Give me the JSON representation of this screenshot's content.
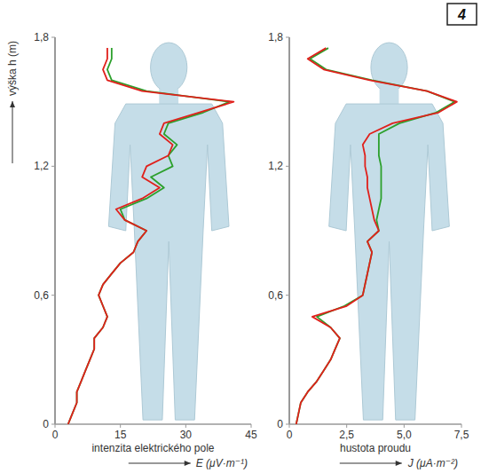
{
  "chart_data": [
    {
      "type": "line",
      "y_label": "výška h (m)",
      "x_label": "intenzita elektrického pole",
      "x_unit": "E (μV·m⁻¹)",
      "xlim": [
        0,
        45
      ],
      "xticks": [
        0,
        15,
        30,
        45
      ],
      "ylim": [
        0,
        1.8
      ],
      "yticks": [
        0,
        {
          "value": 0.6,
          "label": "0,6"
        },
        {
          "value": 1.2,
          "label": "1,2"
        },
        {
          "value": 1.8,
          "label": "1,8"
        }
      ],
      "series": [
        {
          "color": "#2ca02c",
          "y": [
            0,
            0.05,
            0.1,
            0.15,
            0.2,
            0.25,
            0.3,
            0.35,
            0.4,
            0.45,
            0.5,
            0.55,
            0.6,
            0.65,
            0.7,
            0.75,
            0.8,
            0.85,
            0.9,
            0.95,
            1.0,
            1.05,
            1.1,
            1.15,
            1.2,
            1.25,
            1.3,
            1.35,
            1.4,
            1.45,
            1.5,
            1.55,
            1.6,
            1.65,
            1.7,
            1.75
          ],
          "x": [
            3,
            4,
            5,
            5,
            6,
            7,
            8,
            9,
            9,
            11,
            12,
            11,
            10,
            11,
            13,
            15,
            18,
            19,
            21,
            16,
            15,
            21,
            25,
            22,
            27,
            26,
            28,
            25,
            26,
            34,
            40,
            21,
            13,
            12,
            13,
            13
          ]
        },
        {
          "color": "#e0201b",
          "y": [
            0,
            0.05,
            0.1,
            0.15,
            0.2,
            0.25,
            0.3,
            0.35,
            0.4,
            0.45,
            0.5,
            0.55,
            0.6,
            0.65,
            0.7,
            0.75,
            0.8,
            0.85,
            0.9,
            0.95,
            1.0,
            1.05,
            1.1,
            1.15,
            1.2,
            1.25,
            1.3,
            1.35,
            1.4,
            1.45,
            1.5,
            1.55,
            1.6,
            1.65,
            1.7,
            1.75
          ],
          "x": [
            3,
            4,
            5,
            5,
            6,
            7,
            8,
            9,
            9,
            11,
            12,
            11,
            10,
            11,
            13,
            15,
            18,
            19,
            21,
            16,
            14,
            20,
            24,
            20,
            21,
            26,
            27,
            24,
            25,
            33,
            41,
            20,
            12,
            11,
            12,
            12
          ]
        }
      ]
    },
    {
      "type": "line",
      "x_label": "hustota proudu",
      "x_unit": "J (μA·m⁻²)",
      "annotation": "4",
      "xlim": [
        0,
        7.5
      ],
      "xticks": [
        0,
        {
          "value": 2.5,
          "label": "2,5"
        },
        {
          "value": 5,
          "label": "5,0"
        },
        {
          "value": 7.5,
          "label": "7,5"
        }
      ],
      "ylim": [
        0,
        1.8
      ],
      "yticks": [
        0,
        {
          "value": 0.6,
          "label": "0,6"
        },
        {
          "value": 1.2,
          "label": "1,2"
        },
        {
          "value": 1.8,
          "label": "1,8"
        }
      ],
      "series": [
        {
          "color": "#2ca02c",
          "y": [
            0,
            0.05,
            0.1,
            0.15,
            0.2,
            0.25,
            0.3,
            0.35,
            0.4,
            0.45,
            0.5,
            0.55,
            0.6,
            0.65,
            0.7,
            0.75,
            0.8,
            0.85,
            0.9,
            0.95,
            1.0,
            1.05,
            1.1,
            1.15,
            1.2,
            1.25,
            1.3,
            1.35,
            1.4,
            1.45,
            1.5,
            1.55,
            1.6,
            1.65,
            1.7,
            1.75
          ],
          "x": [
            0.3,
            0.4,
            0.5,
            0.8,
            1.2,
            1.5,
            1.8,
            2.0,
            2.2,
            1.8,
            1.2,
            2.4,
            3.2,
            3.3,
            3.4,
            3.5,
            3.6,
            3.4,
            3.9,
            3.8,
            3.9,
            4.0,
            4.0,
            4.0,
            4.0,
            3.9,
            3.9,
            3.9,
            4.8,
            6.4,
            7.2,
            6.0,
            3.6,
            1.6,
            0.9,
            1.7
          ]
        },
        {
          "color": "#e0201b",
          "y": [
            0,
            0.05,
            0.1,
            0.15,
            0.2,
            0.25,
            0.3,
            0.35,
            0.4,
            0.45,
            0.5,
            0.55,
            0.6,
            0.65,
            0.7,
            0.75,
            0.8,
            0.85,
            0.9,
            0.95,
            1.0,
            1.05,
            1.1,
            1.15,
            1.2,
            1.25,
            1.3,
            1.35,
            1.4,
            1.45,
            1.5,
            1.55,
            1.6,
            1.65,
            1.7,
            1.75
          ],
          "x": [
            0.3,
            0.4,
            0.5,
            0.8,
            1.2,
            1.5,
            1.8,
            2.0,
            2.2,
            1.8,
            1.0,
            2.5,
            3.2,
            3.3,
            3.4,
            3.5,
            3.6,
            3.4,
            3.9,
            3.7,
            3.6,
            3.5,
            3.4,
            3.4,
            3.3,
            3.3,
            3.2,
            3.5,
            4.5,
            6.5,
            7.3,
            6.0,
            3.5,
            1.5,
            0.8,
            1.6
          ]
        }
      ]
    }
  ]
}
